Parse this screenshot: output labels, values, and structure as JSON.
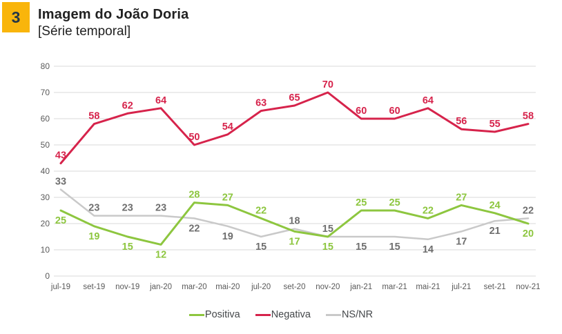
{
  "header": {
    "badge": "3",
    "title": "Imagem do João Doria",
    "subtitle": "[Série temporal]"
  },
  "colors": {
    "badge_bg": "#F9B50B",
    "badge_text": "#253746",
    "title_text": "#212121",
    "grid": "#D9D9D9",
    "axis_text": "#595959",
    "legend_text": "#44474A"
  },
  "chart_data": {
    "type": "line",
    "title": "Imagem do João Doria",
    "subtitle": "[Série temporal]",
    "categories": [
      "jul-19",
      "set-19",
      "nov-19",
      "jan-20",
      "mar-20",
      "mai-20",
      "jul-20",
      "set-20",
      "nov-20",
      "jan-21",
      "mar-21",
      "mai-21",
      "jul-21",
      "set-21",
      "nov-21"
    ],
    "series": [
      {
        "name": "Positiva",
        "color": "#8DC63F",
        "label_color": "#8DC63F",
        "line_width": 3,
        "values": [
          25,
          19,
          15,
          12,
          28,
          27,
          22,
          17,
          15,
          25,
          25,
          22,
          27,
          24,
          20
        ],
        "label_side": [
          "below",
          "below",
          "below",
          "below",
          "above",
          "above",
          "above",
          "below",
          "below",
          "above",
          "above",
          "above",
          "above",
          "above",
          "below"
        ]
      },
      {
        "name": "Negativa",
        "color": "#D6234B",
        "label_color": "#D6234B",
        "line_width": 3,
        "values": [
          43,
          58,
          62,
          64,
          50,
          54,
          63,
          65,
          70,
          60,
          60,
          64,
          56,
          55,
          58
        ],
        "label_side": [
          "above",
          "above",
          "above",
          "above",
          "above",
          "above",
          "above",
          "above",
          "above",
          "above",
          "above",
          "above",
          "above",
          "above",
          "above"
        ]
      },
      {
        "name": "NS/NR",
        "color": "#C9C9C9",
        "label_color": "#6E6E6E",
        "line_width": 2.5,
        "values": [
          33,
          23,
          23,
          23,
          22,
          19,
          15,
          18,
          15,
          15,
          15,
          14,
          17,
          21,
          22
        ],
        "label_side": [
          "above",
          "above",
          "above",
          "above",
          "below",
          "below",
          "below",
          "above",
          "above",
          "below",
          "below",
          "below",
          "below",
          "below",
          "above"
        ]
      }
    ],
    "ylim": [
      0,
      80
    ],
    "yticks": [
      0,
      10,
      20,
      30,
      40,
      50,
      60,
      70,
      80
    ],
    "grid": "horizontal",
    "legend_position": "bottom",
    "draw_order": [
      2,
      0,
      1
    ]
  }
}
